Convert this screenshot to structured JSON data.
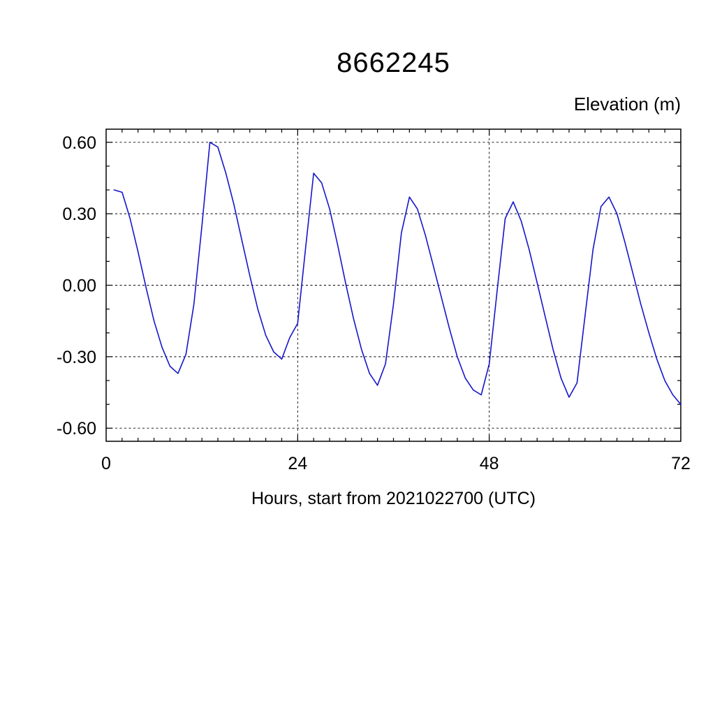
{
  "page": {
    "background": "#ffffff",
    "text_color": "#000000"
  },
  "chart_data": {
    "type": "line",
    "title": "8662245",
    "ylabel": "Elevation (m)",
    "xlabel": "Hours, start from 2021022700 (UTC)",
    "xlim": [
      0,
      72
    ],
    "ylim": [
      -0.6,
      0.6
    ],
    "ylim_padded": [
      -0.655,
      0.655
    ],
    "xticks": [
      0,
      24,
      48,
      72
    ],
    "xtick_labels": [
      "0",
      "24",
      "48",
      "72"
    ],
    "yticks": [
      0.6,
      0.3,
      0.0,
      -0.3,
      -0.6
    ],
    "ytick_labels": [
      "0.60",
      "0.30",
      "0.00",
      "-0.30",
      "-0.60"
    ],
    "grid": true,
    "grid_x_values": [
      24,
      48
    ],
    "grid_y_values": [
      0.6,
      0.3,
      0.0,
      -0.3,
      -0.6
    ],
    "minor_tick_x_interval": 2,
    "minor_tick_y_interval": 0.1,
    "legend_position": "none",
    "line_color": "#1515cc",
    "axis_color": "#000000",
    "x": [
      1,
      2,
      3,
      4,
      5,
      6,
      7,
      8,
      9,
      10,
      11,
      12,
      13,
      14,
      15,
      16,
      17,
      18,
      19,
      20,
      21,
      22,
      23,
      24,
      25,
      26,
      27,
      28,
      29,
      30,
      31,
      32,
      33,
      34,
      35,
      36,
      37,
      38,
      39,
      40,
      41,
      42,
      43,
      44,
      45,
      46,
      47,
      48,
      49,
      50,
      51,
      52,
      53,
      54,
      55,
      56,
      57,
      58,
      59,
      60,
      61,
      62,
      63,
      64,
      65,
      66,
      67,
      68,
      69,
      70,
      71,
      72
    ],
    "values": [
      0.4,
      0.39,
      0.28,
      0.14,
      -0.01,
      -0.15,
      -0.26,
      -0.34,
      -0.37,
      -0.29,
      -0.08,
      0.25,
      0.6,
      0.58,
      0.47,
      0.34,
      0.19,
      0.04,
      -0.1,
      -0.21,
      -0.28,
      -0.31,
      -0.22,
      -0.16,
      0.16,
      0.47,
      0.43,
      0.32,
      0.17,
      0.01,
      -0.14,
      -0.27,
      -0.37,
      -0.42,
      -0.33,
      -0.08,
      0.22,
      0.37,
      0.32,
      0.21,
      0.08,
      -0.05,
      -0.18,
      -0.3,
      -0.39,
      -0.44,
      -0.46,
      -0.33,
      -0.02,
      0.28,
      0.35,
      0.27,
      0.15,
      0.01,
      -0.13,
      -0.27,
      -0.39,
      -0.47,
      -0.41,
      -0.13,
      0.15,
      0.33,
      0.37,
      0.3,
      0.18,
      0.05,
      -0.08,
      -0.2,
      -0.31,
      -0.4,
      -0.46,
      -0.5
    ]
  }
}
